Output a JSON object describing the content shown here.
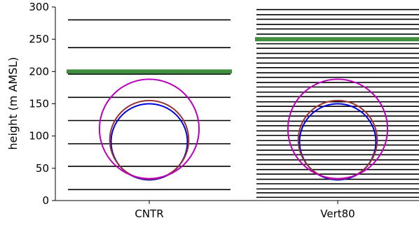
{
  "chart_data": {
    "type": "line",
    "title": "",
    "xlabel": "",
    "ylabel": "height (m AMSL)",
    "ylim": [
      0,
      300
    ],
    "yticks": [
      0,
      50,
      100,
      150,
      200,
      250,
      300
    ],
    "grid": false,
    "categories": [
      "CNTR",
      "Vert80"
    ],
    "model_levels": {
      "CNTR": [
        17,
        53,
        88,
        124,
        160,
        196,
        237,
        280
      ],
      "Vert80": [
        5,
        12,
        18,
        26,
        33,
        41,
        48,
        56,
        63,
        71,
        78,
        86,
        93,
        101,
        108,
        116,
        123,
        131,
        138,
        146,
        153,
        161,
        168,
        176,
        183,
        191,
        198,
        206,
        213,
        221,
        228,
        236,
        243,
        251,
        258,
        266,
        273,
        281,
        288,
        296
      ]
    },
    "highlight_level": {
      "CNTR": 200,
      "Vert80": 250,
      "color": "#3f8f3f"
    },
    "rotors": [
      {
        "color": "#0000dd",
        "center": 91,
        "radius": 59
      },
      {
        "color": "#993333",
        "center": 94,
        "radius": 61
      },
      {
        "color": "#bb00bb",
        "center": 111,
        "radius": 77
      }
    ]
  }
}
